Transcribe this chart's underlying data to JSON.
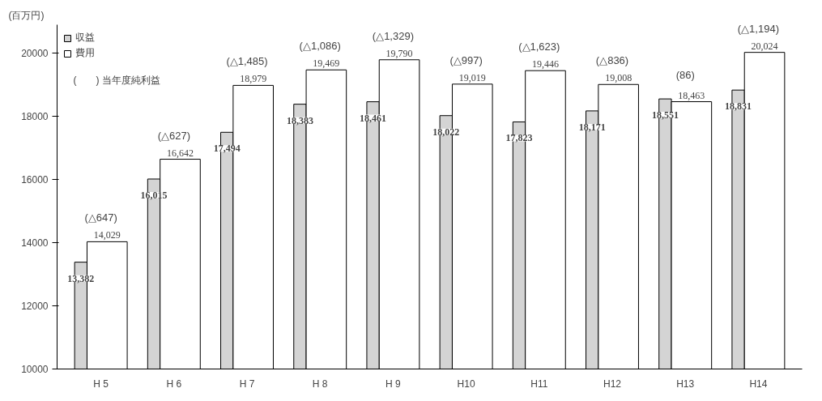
{
  "chart_data": {
    "type": "bar",
    "ylabel": "(百万円)",
    "categories": [
      "H 5",
      "H 6",
      "H 7",
      "H 8",
      "H 9",
      "H10",
      "H11",
      "H12",
      "H13",
      "H14"
    ],
    "series": [
      {
        "name": "収益",
        "color": "#d4d4d4",
        "values": [
          13382,
          16015,
          17494,
          18383,
          18461,
          18022,
          17823,
          18171,
          18551,
          18831
        ],
        "value_labels": [
          "13,382",
          "16,015",
          "17,494",
          "18,383",
          "18,461",
          "18,022",
          "17,823",
          "18,171",
          "18,551",
          "18,831"
        ]
      },
      {
        "name": "費用",
        "color": "#ffffff",
        "values": [
          14029,
          16642,
          18979,
          19469,
          19790,
          19019,
          19446,
          19008,
          18463,
          20024
        ],
        "value_labels": [
          "14,029",
          "16,642",
          "18,979",
          "19,469",
          "19,790",
          "19,019",
          "19,446",
          "19,008",
          "18,463",
          "20,024"
        ]
      }
    ],
    "ylim": [
      10000,
      20900
    ],
    "yticks": [
      10000,
      12000,
      14000,
      16000,
      18000,
      20000
    ],
    "grid": false,
    "legend": "top left",
    "annotations": [
      "(　　) 当年度純利益",
      {
        "text": "(△647)",
        "x": "H 5",
        "y": 14029
      },
      {
        "text": "(△627)",
        "x": "H 6",
        "y": 16642
      },
      {
        "text": "(△1,485)",
        "x": "H 7",
        "y": 18979
      },
      {
        "text": "(△1,086)",
        "x": "H 8",
        "y": 19469
      },
      {
        "text": "(△1,329)",
        "x": "H 9",
        "y": 19790
      },
      {
        "text": "(△997)",
        "x": "H10",
        "y": 19019
      },
      {
        "text": "(△1,623)",
        "x": "H11",
        "y": 19446
      },
      {
        "text": "(△836)",
        "x": "H12",
        "y": 19008
      },
      {
        "text": "(86)",
        "x": "H13",
        "y": 18551
      },
      {
        "text": "(△1,194)",
        "x": "H14",
        "y": 20024
      }
    ]
  }
}
